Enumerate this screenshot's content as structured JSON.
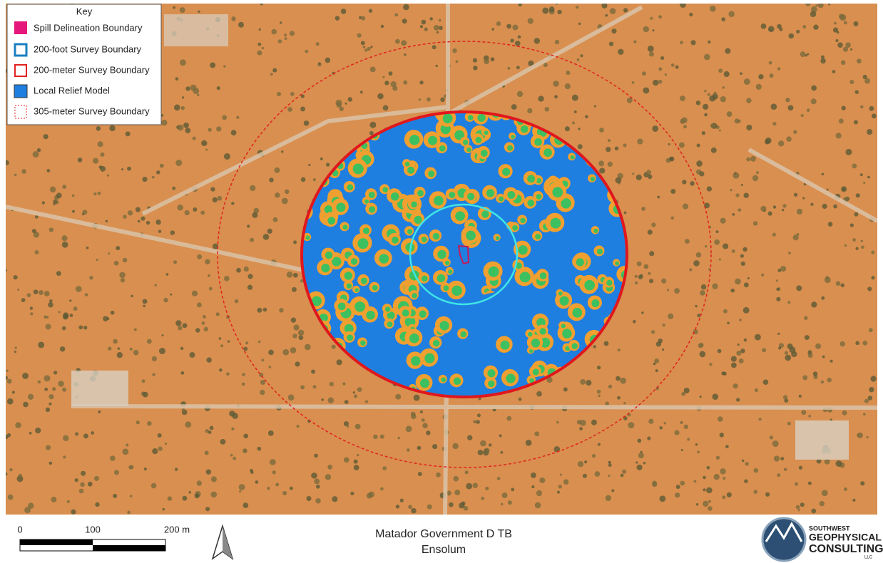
{
  "legend": {
    "title": "Key",
    "items": [
      "Spill Delineation Boundary",
      "200-foot Survey Boundary",
      "200-meter Survey Boundary",
      "Local Relief Model",
      "305-meter Survey Boundary"
    ]
  },
  "scale_bar": {
    "labels": [
      "0",
      "100",
      "200 m"
    ]
  },
  "title": {
    "name": "Matador Government D TB",
    "client": "Ensolum"
  },
  "logo": {
    "lines": [
      "SOUTHWEST",
      "GEOPHYSICAL",
      "CONSULTING",
      "LLC"
    ]
  }
}
